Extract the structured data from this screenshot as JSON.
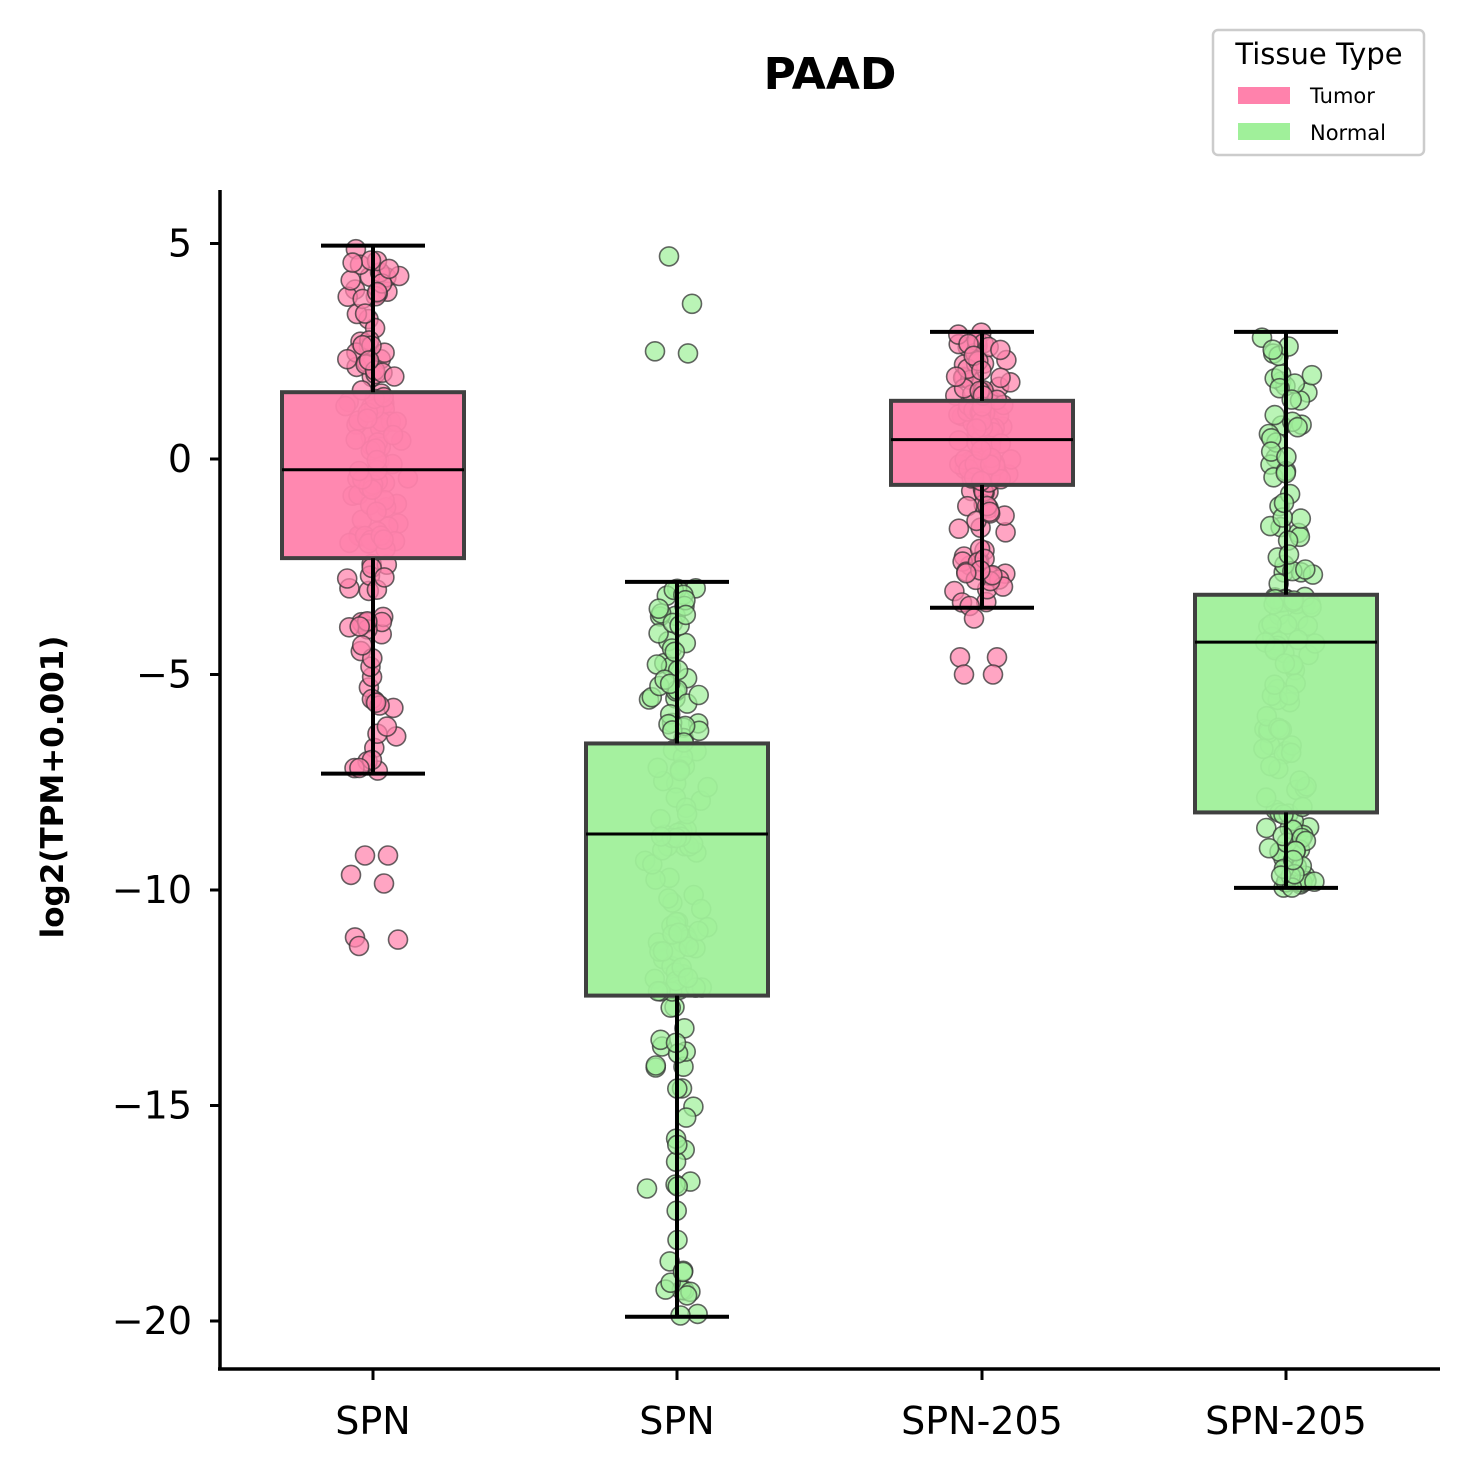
{
  "chart_data": {
    "type": "box",
    "title": "PAAD",
    "xlabel": "",
    "ylabel": "log2(TPM+0.001)",
    "ylim": [
      -21.2,
      6.2
    ],
    "yticks": [
      5,
      0,
      -5,
      -10,
      -15,
      -20
    ],
    "ytick_labels": [
      "5",
      "0",
      "−5",
      "−10",
      "−15",
      "−20"
    ],
    "categories": [
      "SPN",
      "SPN",
      "SPN-205",
      "SPN-205"
    ],
    "legend": {
      "title": "Tissue Type",
      "placement": "top-right",
      "entries": [
        {
          "label": "Tumor",
          "color": "#ff82ac"
        },
        {
          "label": "Normal",
          "color": "#a0f09a"
        }
      ]
    },
    "colors": {
      "Tumor": "#ff82ac",
      "Normal": "#a0f09a",
      "box_edge": "#404040",
      "point_edge": "#333333"
    },
    "boxes": [
      {
        "category": "SPN",
        "tissue": "Tumor",
        "whisker_low": -7.3,
        "q1": -2.3,
        "median": -0.25,
        "q3": 1.55,
        "whisker_high": 4.95,
        "outliers": [
          -9.2,
          -9.2,
          -9.65,
          -9.85,
          -11.1,
          -11.15,
          -11.3
        ]
      },
      {
        "category": "SPN",
        "tissue": "Normal",
        "whisker_low": -19.9,
        "q1": -12.45,
        "median": -8.7,
        "q3": -6.6,
        "whisker_high": -2.85,
        "outliers": [
          4.7,
          3.6,
          2.5,
          2.45
        ]
      },
      {
        "category": "SPN-205",
        "tissue": "Tumor",
        "whisker_low": -3.45,
        "q1": -0.6,
        "median": 0.45,
        "q3": 1.35,
        "whisker_high": 2.95,
        "outliers": [
          -3.7,
          -4.6,
          -4.6,
          -5.0,
          -5.0
        ]
      },
      {
        "category": "SPN-205",
        "tissue": "Normal",
        "whisker_low": -9.95,
        "q1": -8.2,
        "median": -4.25,
        "q3": -3.15,
        "whisker_high": 2.95,
        "outliers": []
      }
    ]
  }
}
